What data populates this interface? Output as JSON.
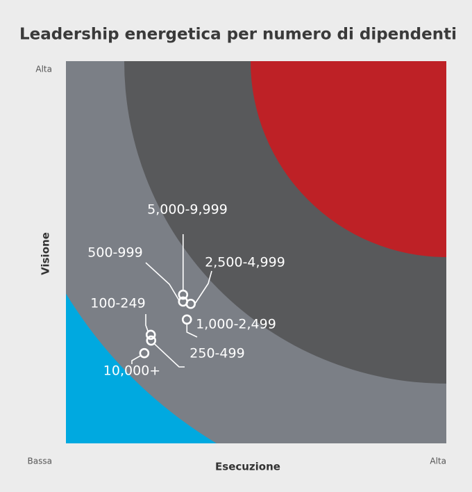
{
  "chart_data": {
    "type": "scatter",
    "title": "Leadership energetica per numero di dipendenti",
    "xlabel": "Esecuzione",
    "ylabel": "Visione",
    "xlim": [
      0,
      100
    ],
    "ylim": [
      0,
      100
    ],
    "xticks": [
      {
        "value": 0,
        "label": "Bassa"
      },
      {
        "value": 100,
        "label": "Alta"
      }
    ],
    "yticks": [
      {
        "value": 100,
        "label": "Alta"
      }
    ],
    "labels": [
      "5,000-9,999",
      "500-999",
      "2,500-4,999",
      "1,000-2,499",
      "100-249",
      "250-499",
      "10,000+"
    ],
    "x": [
      30.8,
      30.8,
      32.8,
      31.8,
      22.3,
      22.4,
      20.6
    ],
    "y": [
      38.9,
      37.1,
      36.5,
      32.4,
      28.4,
      26.9,
      23.6
    ],
    "color": "#ffffff"
  }
}
